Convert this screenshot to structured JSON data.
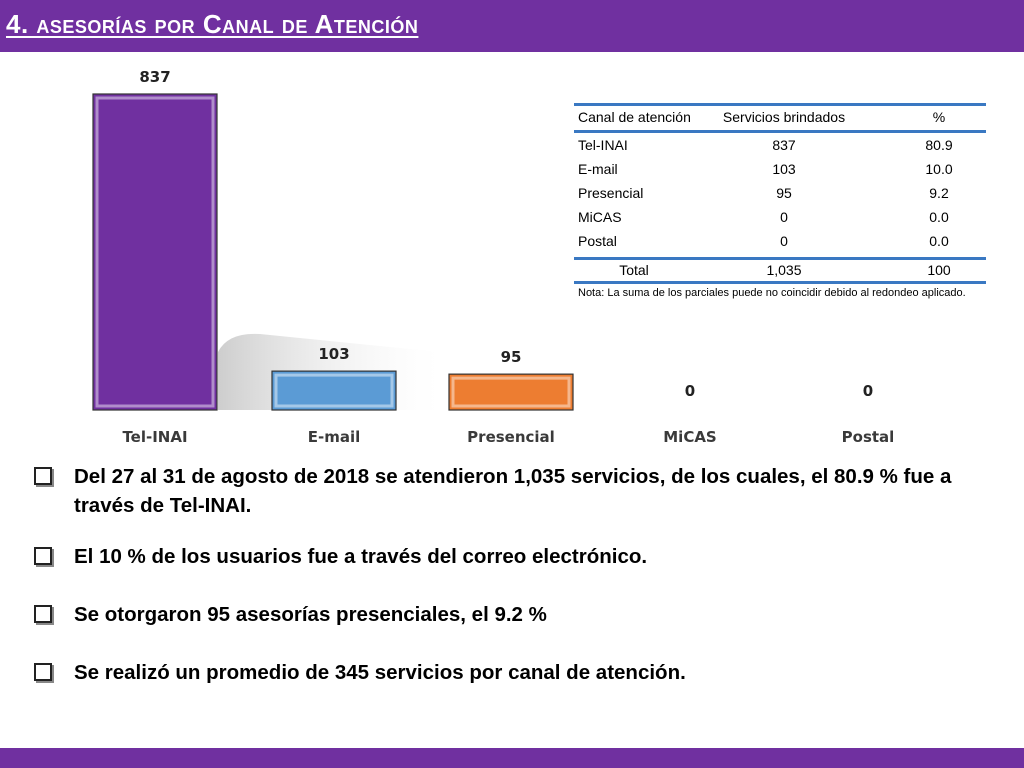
{
  "header": {
    "title": "4. asesorías por Canal de Atención"
  },
  "chart_data": {
    "type": "bar",
    "categories": [
      "Tel-INAI",
      "E-mail",
      "Presencial",
      "MiCAS",
      "Postal"
    ],
    "values": [
      837,
      103,
      95,
      0,
      0
    ],
    "data_labels": [
      "837",
      "103",
      "95",
      "0",
      "0"
    ],
    "colors": [
      "#7030A0",
      "#5B9BD5",
      "#ED7D31",
      "#A5A5A5",
      "#A5A5A5"
    ],
    "title": "",
    "xlabel": "",
    "ylabel": "",
    "ylim": [
      0,
      900
    ],
    "grid": false,
    "legend": "none"
  },
  "table": {
    "headers": [
      "Canal de atención",
      "Servicios brindados",
      "%"
    ],
    "rows": [
      [
        "Tel-INAI",
        "837",
        "80.9"
      ],
      [
        "E-mail",
        "103",
        "10.0"
      ],
      [
        "Presencial",
        "95",
        "9.2"
      ],
      [
        "MiCAS",
        "0",
        "0.0"
      ],
      [
        "Postal",
        "0",
        "0.0"
      ]
    ],
    "total": [
      "Total",
      "1,035",
      "100"
    ],
    "note": "Nota: La suma de los parciales puede no coincidir debido al redondeo aplicado."
  },
  "bullets": [
    "Del 27 al 31 de agosto de 2018 se atendieron 1,035 servicios, de los cuales, el 80.9 % fue a través de Tel-INAI.",
    "El 10 % de los usuarios fue a través del correo electrónico.",
    "Se otorgaron 95 asesorías presenciales, el 9.2 %",
    "Se realizó un promedio de 345 servicios por canal de atención."
  ],
  "colors": {
    "accent": "#7030A0",
    "table_rule": "#3A78C2"
  }
}
